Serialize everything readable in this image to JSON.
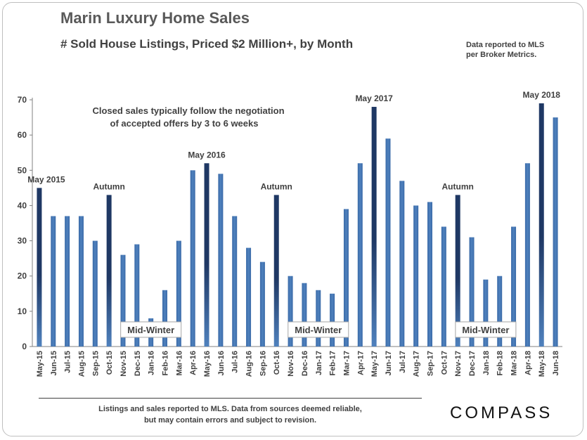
{
  "header": {
    "title": "Marin Luxury Home Sales",
    "subtitle": "# Sold House Listings, Priced $2 Million+,  by Month",
    "source_line1": "Data reported to MLS",
    "source_line2": "per Broker Metrics."
  },
  "footer": {
    "line1": "Listings  and sales reported to MLS. Data from sources deemed reliable,",
    "line2": "but may contain errors and subject to revision.",
    "logo": "COMPASS"
  },
  "colors": {
    "bar": "#4f81bd",
    "bar_dark": "#1f3864",
    "text": "#404040"
  },
  "chart_data": {
    "type": "bar",
    "categories": [
      "May-15",
      "Jun-15",
      "Jul-15",
      "Aug-15",
      "Sep-15",
      "Oct-15",
      "Nov-15",
      "Dec-15",
      "Jan-16",
      "Feb-16",
      "Mar-16",
      "Apr-16",
      "May-16",
      "Jun-16",
      "Jul-16",
      "Aug-16",
      "Sep-16",
      "Oct-16",
      "Nov-16",
      "Dec-16",
      "Jan-17",
      "Feb-17",
      "Mar-17",
      "Apr-17",
      "May-17",
      "Jun-17",
      "Jul-17",
      "Aug-17",
      "Sep-17",
      "Oct-17",
      "Nov-17",
      "Dec-17",
      "Jan-18",
      "Feb-18",
      "Mar-18",
      "Apr-18",
      "May-18",
      "Jun-18"
    ],
    "values": [
      45,
      37,
      37,
      37,
      30,
      43,
      26,
      29,
      8,
      16,
      30,
      50,
      52,
      49,
      37,
      28,
      24,
      43,
      20,
      18,
      16,
      15,
      39,
      52,
      68,
      59,
      47,
      40,
      41,
      34,
      43,
      31,
      19,
      20,
      34,
      52,
      69,
      65
    ],
    "highlighted": [
      0,
      5,
      12,
      17,
      24,
      30,
      36
    ],
    "ylim": [
      0,
      70
    ],
    "yticks": [
      0,
      10,
      20,
      30,
      40,
      50,
      60,
      70
    ],
    "grid": false,
    "annotations": [
      {
        "text": "May 2015",
        "index": 0,
        "value": 45
      },
      {
        "text": "Autumn",
        "index": 5,
        "value": 43
      },
      {
        "text": "May 2016",
        "index": 12,
        "value": 52
      },
      {
        "text": "Autumn",
        "index": 17,
        "value": 43
      },
      {
        "text": "May 2017",
        "index": 24,
        "value": 68
      },
      {
        "text": "Autumn",
        "index": 30,
        "value": 43
      },
      {
        "text": "May 2018",
        "index": 36,
        "value": 69
      }
    ],
    "boxed_labels": [
      {
        "text": "Mid-Winter",
        "index": 8,
        "value": 4.8
      },
      {
        "text": "Mid-Winter",
        "index": 20,
        "value": 4.8
      },
      {
        "text": "Mid-Winter",
        "index": 32,
        "value": 4.8
      }
    ],
    "note_line1": "Closed sales typically follow the negotiation",
    "note_line2": "of accepted  offers by 3 to 6 weeks"
  }
}
